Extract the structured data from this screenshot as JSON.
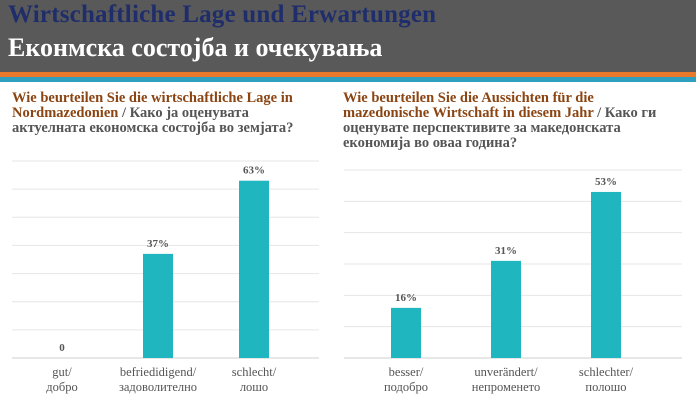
{
  "header": {
    "title_de": "Wirtschaftliche Lage und Erwartungen",
    "title_mk": "Еконмска состојба и очекувања"
  },
  "colors": {
    "header_bg": "#595959",
    "title_de": "#1f2d6b",
    "stripe_orange": "#e8792a",
    "stripe_teal": "#2e9fbf",
    "bar": "#1fb6bf",
    "question_de": "#8b4513",
    "question_mk": "#555555"
  },
  "questions": [
    {
      "de": "Wie beurteilen Sie die wirtschaftliche Lage in Nordmazedonien",
      "mk": "/ Како ја оценувата актуелната економска состојба во земјата?"
    },
    {
      "de": "Wie beurteilen Sie die Aussichten für die mazedonische Wirtschaft in diesem Jahr",
      "mk": "/ Како ги оценувате перспективите за македонската економија во оваа година?"
    }
  ],
  "chart_data": [
    {
      "type": "bar",
      "categories": [
        [
          "gut/",
          "добро"
        ],
        [
          "befriedidigend/",
          "задоволително"
        ],
        [
          "schlecht/",
          "лошо"
        ]
      ],
      "values": [
        0,
        37,
        63
      ],
      "value_labels": [
        "0",
        "37%",
        "63%"
      ],
      "ylim": [
        0,
        70
      ],
      "grid": true
    },
    {
      "type": "bar",
      "categories": [
        [
          "besser/",
          "подобро"
        ],
        [
          "unverändert/",
          "непроменето"
        ],
        [
          "schlechter/",
          "полошо"
        ]
      ],
      "values": [
        16,
        31,
        53
      ],
      "value_labels": [
        "16%",
        "31%",
        "53%"
      ],
      "ylim": [
        0,
        60
      ],
      "grid": true
    }
  ]
}
